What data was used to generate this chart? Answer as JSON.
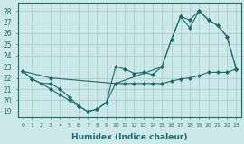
{
  "xlabel": "Humidex (Indice chaleur)",
  "bg_color": "#cce8e8",
  "grid_color": "#aacece",
  "line_color": "#1a6b6b",
  "xlim": [
    -0.5,
    23.5
  ],
  "ylim": [
    18.5,
    28.7
  ],
  "yticks": [
    19,
    20,
    21,
    22,
    23,
    24,
    25,
    26,
    27,
    28
  ],
  "xticks": [
    0,
    1,
    2,
    3,
    4,
    5,
    6,
    7,
    8,
    9,
    10,
    11,
    12,
    13,
    14,
    15,
    16,
    17,
    18,
    19,
    20,
    21,
    22,
    23
  ],
  "series1_x": [
    0,
    1,
    2,
    3,
    4,
    5,
    6,
    7,
    8,
    9,
    10,
    11,
    12,
    13,
    14,
    15,
    16,
    17,
    18,
    19,
    20,
    21,
    22,
    23
  ],
  "series1_y": [
    22.6,
    21.9,
    21.5,
    21.5,
    21.0,
    20.3,
    19.5,
    19.0,
    19.2,
    19.8,
    21.5,
    21.5,
    21.5,
    21.5,
    21.5,
    21.5,
    21.7,
    21.9,
    22.0,
    22.2,
    22.5,
    22.5,
    22.5,
    22.8
  ],
  "series2_x": [
    0,
    1,
    2,
    3,
    4,
    5,
    6,
    7,
    8,
    9,
    10,
    11,
    12,
    13,
    14,
    15,
    16,
    17,
    18,
    19,
    20,
    21,
    22,
    23
  ],
  "series2_y": [
    22.6,
    21.9,
    21.5,
    21.0,
    20.5,
    20.0,
    19.5,
    19.0,
    19.2,
    19.8,
    23.0,
    22.8,
    22.4,
    22.5,
    22.3,
    23.0,
    25.4,
    27.5,
    27.2,
    28.0,
    27.2,
    26.7,
    25.7,
    22.8
  ],
  "series3_x": [
    0,
    3,
    10,
    15,
    16,
    17,
    18,
    19,
    20,
    21,
    22,
    23
  ],
  "series3_y": [
    22.6,
    22.0,
    21.5,
    23.0,
    25.4,
    27.5,
    26.5,
    28.0,
    27.2,
    26.7,
    25.7,
    22.8
  ]
}
